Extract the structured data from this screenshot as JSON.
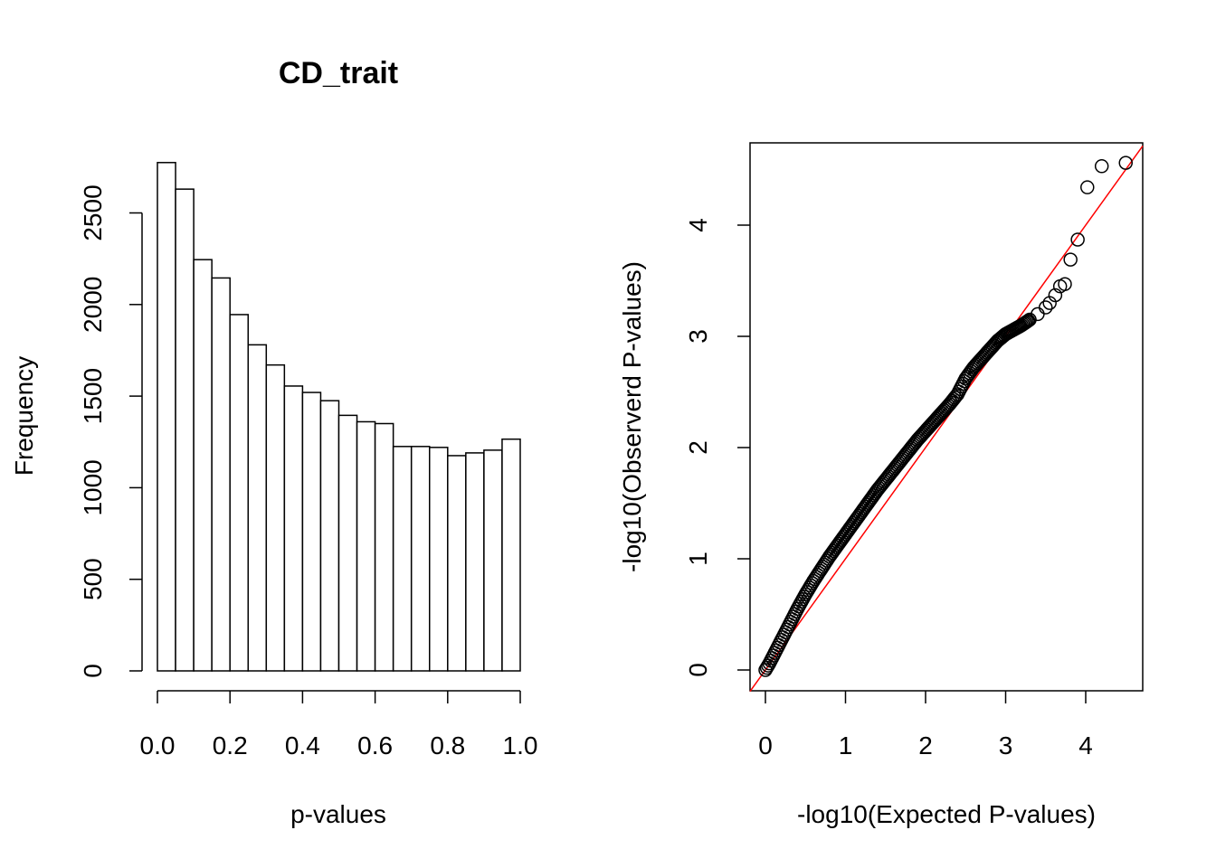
{
  "chart_data": [
    {
      "type": "bar",
      "title": "CD_trait",
      "xlabel": "p-values",
      "ylabel": "Frequency",
      "bin_edges": [
        0.0,
        0.05,
        0.1,
        0.15,
        0.2,
        0.25,
        0.3,
        0.35,
        0.4,
        0.45,
        0.5,
        0.55,
        0.6,
        0.65,
        0.7,
        0.75,
        0.8,
        0.85,
        0.9,
        0.95,
        1.0
      ],
      "values": [
        2775,
        2630,
        2245,
        2145,
        1945,
        1780,
        1670,
        1555,
        1520,
        1475,
        1395,
        1360,
        1350,
        1225,
        1225,
        1220,
        1175,
        1190,
        1205,
        1265
      ],
      "xlim": [
        0.0,
        1.0
      ],
      "ylim": [
        0,
        2500
      ],
      "xticks": [
        "0.0",
        "0.2",
        "0.4",
        "0.6",
        "0.8",
        "1.0"
      ],
      "yticks": [
        "0",
        "500",
        "1000",
        "1500",
        "2000",
        "2500"
      ],
      "grid": false
    },
    {
      "type": "scatter",
      "title": "",
      "xlabel": "-log10(Expected P-values)",
      "ylabel": "-log10(Observerd P-values)",
      "xlim": [
        -0.2,
        4.6
      ],
      "ylim": [
        -0.2,
        4.7
      ],
      "xticks": [
        "0",
        "1",
        "2",
        "3",
        "4"
      ],
      "yticks": [
        "0",
        "1",
        "2",
        "3",
        "4"
      ],
      "reference_line": {
        "slope": 1,
        "intercept": 0,
        "color": "#ff0000"
      },
      "point_color": "#000000",
      "grid": false,
      "points": [
        [
          0.0,
          0.0
        ],
        [
          0.05,
          0.06
        ],
        [
          0.1,
          0.13
        ],
        [
          0.2,
          0.27
        ],
        [
          0.3,
          0.41
        ],
        [
          0.4,
          0.55
        ],
        [
          0.5,
          0.68
        ],
        [
          0.6,
          0.8
        ],
        [
          0.7,
          0.91
        ],
        [
          0.8,
          1.02
        ],
        [
          0.9,
          1.12
        ],
        [
          1.0,
          1.22
        ],
        [
          1.1,
          1.32
        ],
        [
          1.2,
          1.42
        ],
        [
          1.3,
          1.52
        ],
        [
          1.4,
          1.62
        ],
        [
          1.5,
          1.71
        ],
        [
          1.6,
          1.8
        ],
        [
          1.7,
          1.89
        ],
        [
          1.8,
          1.98
        ],
        [
          1.9,
          2.07
        ],
        [
          2.0,
          2.15
        ],
        [
          2.1,
          2.23
        ],
        [
          2.2,
          2.31
        ],
        [
          2.3,
          2.39
        ],
        [
          2.4,
          2.48
        ],
        [
          2.5,
          2.62
        ],
        [
          2.6,
          2.72
        ],
        [
          2.7,
          2.8
        ],
        [
          2.8,
          2.88
        ],
        [
          2.9,
          2.96
        ],
        [
          3.0,
          3.02
        ],
        [
          3.1,
          3.06
        ],
        [
          3.2,
          3.1
        ],
        [
          3.3,
          3.15
        ],
        [
          3.4,
          3.2
        ],
        [
          3.5,
          3.26
        ],
        [
          3.55,
          3.3
        ],
        [
          3.62,
          3.37
        ],
        [
          3.68,
          3.45
        ],
        [
          3.74,
          3.47
        ],
        [
          3.81,
          3.69
        ],
        [
          3.9,
          3.87
        ],
        [
          4.02,
          4.34
        ],
        [
          4.2,
          4.53
        ],
        [
          4.5,
          4.56
        ]
      ]
    }
  ]
}
